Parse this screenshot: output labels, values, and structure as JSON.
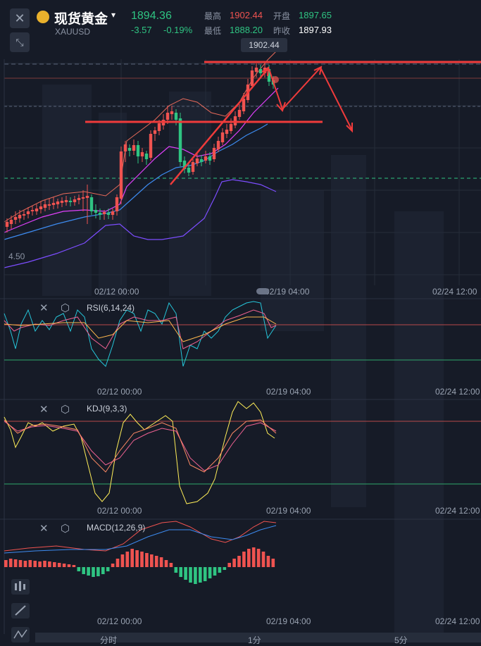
{
  "header": {
    "name": "现货黄金",
    "code": "XAUUSD",
    "price": "1894.36",
    "change": "-3.57",
    "change_pct": "-0.19%",
    "high_label": "最高",
    "high": "1902.44",
    "low_label": "最低",
    "low": "1888.20",
    "open_label": "开盘",
    "open": "1897.65",
    "prev_label": "昨收",
    "prev": "1897.93"
  },
  "chart": {
    "price_tag": "1902.44",
    "left_value": "4.50",
    "x_labels": [
      "02/12 00:00",
      "02/19 04:00",
      "02/24 12:00"
    ]
  },
  "indicators": {
    "rsi": "RSI(6,14,24)",
    "kdj": "KDJ(9,3,3)",
    "macd": "MACD(12,26,9)"
  },
  "tabs": [
    "分时",
    "1分",
    "5分"
  ],
  "colors": {
    "up": "#ef5350",
    "down": "#2fc482",
    "accent": "#e9b12c",
    "background": "#161b27"
  },
  "icons": [
    "close-icon",
    "shrink-icon",
    "coin-icon",
    "caret-down-icon",
    "settings-icon",
    "candles-icon",
    "pen-icon",
    "trend-icon"
  ]
}
